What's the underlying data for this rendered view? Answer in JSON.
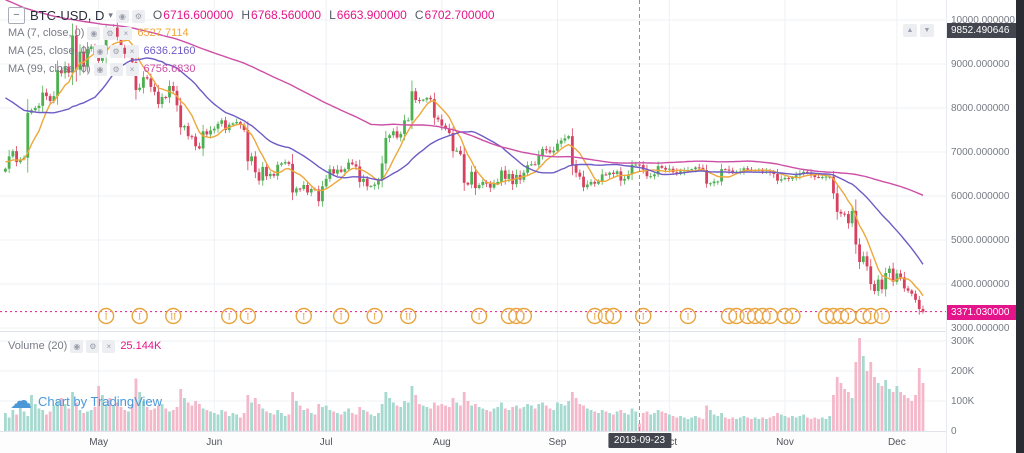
{
  "header": {
    "menu_icon": "−",
    "symbol": "BTC-USD, D",
    "caret": "▾",
    "toolbar_icons": [
      "◉",
      "⚙"
    ],
    "ohlc": [
      {
        "label": "O",
        "value": "6716.600000"
      },
      {
        "label": "H",
        "value": "6768.560000"
      },
      {
        "label": "L",
        "value": "6663.900000"
      },
      {
        "label": "C",
        "value": "6702.700000"
      }
    ]
  },
  "indicators": [
    {
      "label": "MA (7, close, 0)",
      "value": "6527.7114",
      "color": "#eda73b"
    },
    {
      "label": "MA (25, close, 0)",
      "value": "6636.2160",
      "color": "#6f5bc5"
    },
    {
      "label": "MA (99, close, 0)",
      "value": "6756.6830",
      "color": "#cd4fa6"
    }
  ],
  "legend_icons": [
    "◉",
    "⚙",
    "×"
  ],
  "pane_buttons": [
    "▲",
    "▼"
  ],
  "volume_indicator": {
    "label": "Volume (20)",
    "value": "25.144K"
  },
  "price_axis": {
    "crosshair_label": "9852.490646",
    "last_price_label": "3371.030000",
    "labels": [
      {
        "t": "10000.000000",
        "v": 10000
      },
      {
        "t": "9000.000000",
        "v": 9000
      },
      {
        "t": "8000.000000",
        "v": 8000
      },
      {
        "t": "7000.000000",
        "v": 7000
      },
      {
        "t": "6000.000000",
        "v": 6000
      },
      {
        "t": "5000.000000",
        "v": 5000
      },
      {
        "t": "4000.000000",
        "v": 4000
      },
      {
        "t": "3000.000000",
        "v": 3000
      }
    ]
  },
  "volume_axis": {
    "labels": [
      {
        "t": "300K",
        "v": 300
      },
      {
        "t": "200K",
        "v": 200
      },
      {
        "t": "100K",
        "v": 100
      },
      {
        "t": "0",
        "v": 0
      }
    ]
  },
  "time_axis": {
    "crosshair_date": "2018-09-23",
    "crosshair_index": 170,
    "months": [
      {
        "label": "May",
        "index": 25
      },
      {
        "label": "Jun",
        "index": 56
      },
      {
        "label": "Jul",
        "index": 86
      },
      {
        "label": "Aug",
        "index": 117
      },
      {
        "label": "Sep",
        "index": 148
      },
      {
        "label": "Oct",
        "index": 178
      },
      {
        "label": "Nov",
        "index": 209
      },
      {
        "label": "Dec",
        "index": 239
      }
    ]
  },
  "watermark": {
    "icon": "☁",
    "text": "Chart by TradingView"
  },
  "colors": {
    "up": "#4caf50",
    "down": "#d8405f",
    "vol_up": "#a6d9cf",
    "vol_down": "#f4b8ca",
    "accent": "#e4158b",
    "ohlc_value": "#e4158b",
    "grid": "#eef0f4",
    "axis_text": "#757a85",
    "crosshair": "#9096a0",
    "badge_dark": "#43464f",
    "marker": "#e7a33c",
    "logo_blue": "#4a98d8"
  },
  "chart_data": {
    "type": "candlestick",
    "title": "BTC-USD, D",
    "interval": "D",
    "ylim": [
      2930,
      10450
    ],
    "volume_ylim_k": [
      0,
      330
    ],
    "last_price": 3371.03,
    "grid": true,
    "ma": [
      {
        "period": 7,
        "seed": 6800,
        "color": "#eda73b"
      },
      {
        "period": 25,
        "seed": 8300,
        "color": "#6f5bc5"
      },
      {
        "period": 99,
        "seed": 10500,
        "color": "#cd4fa6"
      }
    ],
    "closes": [
      6620,
      6900,
      7020,
      6770,
      6830,
      6870,
      7890,
      7950,
      8000,
      8050,
      8350,
      8270,
      8160,
      8270,
      8860,
      8790,
      8940,
      8800,
      9650,
      8870,
      9280,
      8940,
      9340,
      9400,
      9240,
      9070,
      9220,
      9740,
      9700,
      9830,
      9620,
      9370,
      9230,
      9320,
      9040,
      8410,
      8460,
      8700,
      8670,
      8480,
      8370,
      8090,
      8250,
      8240,
      8500,
      8390,
      8060,
      7560,
      7590,
      7360,
      7350,
      7130,
      7080,
      7470,
      7400,
      7490,
      7530,
      7640,
      7720,
      7500,
      7620,
      7650,
      7680,
      7620,
      7500,
      6790,
      6900,
      6540,
      6350,
      6660,
      6450,
      6500,
      6460,
      6710,
      6740,
      6770,
      6730,
      6080,
      6170,
      6160,
      6250,
      6080,
      6160,
      6150,
      5880,
      6220,
      6390,
      6610,
      6510,
      6600,
      6550,
      6610,
      6760,
      6720,
      6670,
      6320,
      6390,
      6220,
      6230,
      6260,
      6360,
      6740,
      7320,
      7380,
      7470,
      7330,
      7410,
      7720,
      7720,
      8380,
      8180,
      8170,
      8190,
      8230,
      8200,
      7780,
      7740,
      7600,
      7530,
      7430,
      7020,
      7030,
      6950,
      6300,
      6260,
      6550,
      6180,
      6250,
      6320,
      6280,
      6190,
      6280,
      6320,
      6580,
      6390,
      6500,
      6270,
      6480,
      6370,
      6530,
      6700,
      6720,
      6710,
      6910,
      7070,
      7040,
      6990,
      7030,
      7190,
      7260,
      7310,
      7360,
      6710,
      6530,
      6440,
      6200,
      6260,
      6320,
      6280,
      6330,
      6490,
      6480,
      6530,
      6500,
      6560,
      6350,
      6390,
      6490,
      6710,
      6716.6,
      6702.7,
      6600,
      6450,
      6450,
      6490,
      6680,
      6640,
      6600,
      6620,
      6540,
      6500,
      6560,
      6580,
      6590,
      6610,
      6650,
      6640,
      6590,
      6280,
      6290,
      6330,
      6330,
      6610,
      6600,
      6580,
      6540,
      6550,
      6560,
      6630,
      6600,
      6580,
      6590,
      6590,
      6560,
      6560,
      6550,
      6500,
      6350,
      6380,
      6410,
      6390,
      6420,
      6470,
      6510,
      6550,
      6520,
      6490,
      6430,
      6420,
      6430,
      6440,
      6440,
      6060,
      5640,
      5600,
      5590,
      5380,
      5660,
      4900,
      4500,
      4630,
      4400,
      4000,
      3840,
      4100,
      3880,
      4250,
      4350,
      4050,
      4240,
      4150,
      3900,
      3850,
      3780,
      3640,
      3430,
      3371
    ],
    "volumes_k": [
      60,
      45,
      70,
      55,
      80,
      65,
      50,
      120,
      90,
      75,
      70,
      55,
      65,
      85,
      100,
      110,
      90,
      75,
      130,
      95,
      70,
      60,
      65,
      70,
      80,
      150,
      120,
      90,
      110,
      85,
      95,
      80,
      70,
      65,
      90,
      175,
      130,
      100,
      80,
      70,
      75,
      85,
      90,
      75,
      65,
      70,
      80,
      140,
      110,
      95,
      85,
      100,
      90,
      75,
      70,
      65,
      60,
      55,
      70,
      65,
      50,
      60,
      55,
      45,
      60,
      120,
      95,
      110,
      90,
      75,
      65,
      60,
      55,
      70,
      60,
      50,
      55,
      130,
      100,
      85,
      70,
      75,
      60,
      55,
      90,
      80,
      85,
      70,
      65,
      60,
      55,
      65,
      75,
      60,
      55,
      80,
      70,
      65,
      55,
      50,
      60,
      90,
      130,
      110,
      95,
      85,
      80,
      100,
      95,
      150,
      120,
      90,
      85,
      80,
      75,
      95,
      85,
      90,
      85,
      80,
      110,
      95,
      85,
      130,
      100,
      85,
      90,
      80,
      75,
      70,
      65,
      75,
      80,
      95,
      75,
      70,
      80,
      85,
      75,
      80,
      90,
      85,
      75,
      90,
      95,
      85,
      75,
      70,
      95,
      90,
      85,
      100,
      130,
      110,
      90,
      85,
      75,
      70,
      65,
      60,
      70,
      65,
      60,
      55,
      65,
      70,
      60,
      55,
      75,
      65,
      25,
      60,
      65,
      55,
      60,
      70,
      65,
      60,
      55,
      50,
      45,
      50,
      45,
      40,
      45,
      50,
      45,
      40,
      85,
      70,
      55,
      50,
      60,
      45,
      40,
      45,
      40,
      45,
      50,
      45,
      40,
      45,
      40,
      45,
      40,
      45,
      50,
      60,
      55,
      50,
      45,
      50,
      45,
      50,
      55,
      45,
      40,
      45,
      40,
      45,
      40,
      50,
      120,
      180,
      160,
      140,
      130,
      110,
      230,
      310,
      250,
      200,
      230,
      180,
      160,
      150,
      170,
      140,
      130,
      150,
      130,
      120,
      110,
      100,
      120,
      210,
      160
    ],
    "event_markers": [
      {
        "i": 27,
        "t": "I"
      },
      {
        "i": 36,
        "t": "I"
      },
      {
        "i": 45,
        "t": "II"
      },
      {
        "i": 60,
        "t": "I"
      },
      {
        "i": 65,
        "t": "I"
      },
      {
        "i": 80,
        "t": "I"
      },
      {
        "i": 90,
        "t": "I"
      },
      {
        "i": 99,
        "t": "I"
      },
      {
        "i": 108,
        "t": "II"
      },
      {
        "i": 127,
        "t": "I"
      },
      {
        "i": 135,
        "t": "I"
      },
      {
        "i": 137,
        "t": "I"
      },
      {
        "i": 139,
        "t": "I"
      },
      {
        "i": 158,
        "t": "I"
      },
      {
        "i": 161,
        "t": "I"
      },
      {
        "i": 163,
        "t": "I"
      },
      {
        "i": 171,
        "t": "I"
      },
      {
        "i": 183,
        "t": "I"
      },
      {
        "i": 194,
        "t": "I"
      },
      {
        "i": 196,
        "t": "I"
      },
      {
        "i": 199,
        "t": "I"
      },
      {
        "i": 201,
        "t": "I"
      },
      {
        "i": 203,
        "t": "I"
      },
      {
        "i": 205,
        "t": "I"
      },
      {
        "i": 209,
        "t": "I"
      },
      {
        "i": 211,
        "t": "I"
      },
      {
        "i": 220,
        "t": "I"
      },
      {
        "i": 222,
        "t": "I"
      },
      {
        "i": 224,
        "t": "I"
      },
      {
        "i": 226,
        "t": "I"
      },
      {
        "i": 230,
        "t": "I"
      },
      {
        "i": 232,
        "t": "I"
      },
      {
        "i": 235,
        "t": "I"
      }
    ]
  }
}
